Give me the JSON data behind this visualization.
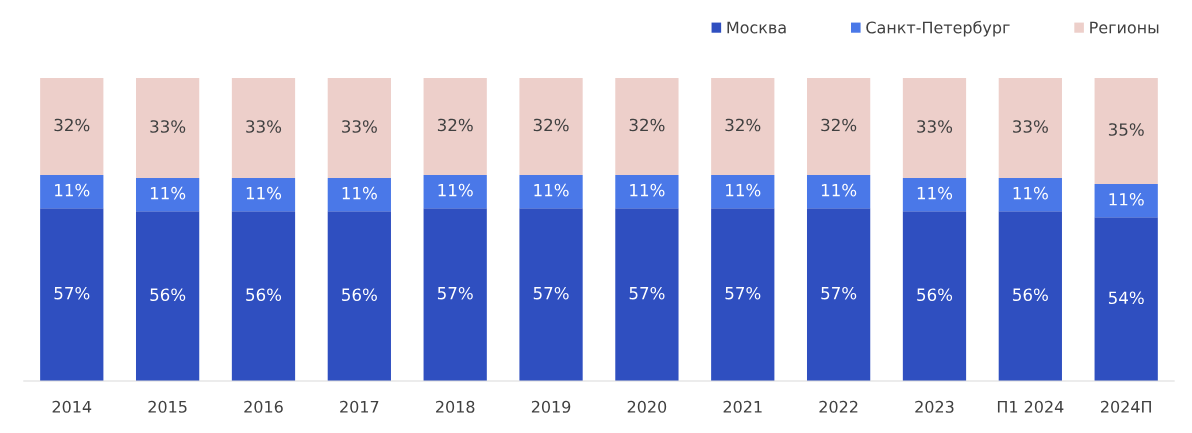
{
  "chart_data": {
    "type": "bar",
    "stacked": true,
    "legend": "top right",
    "tick_labels": "x",
    "grid": false,
    "categories": [
      "2014",
      "2015",
      "2016",
      "2017",
      "2018",
      "2019",
      "2020",
      "2021",
      "2022",
      "2023",
      "П1 2024",
      "2024П"
    ],
    "ylim": [
      0,
      100
    ],
    "series": [
      {
        "name": "Москва",
        "color": "#2f4fc0",
        "values": [
          57,
          56,
          56,
          56,
          57,
          57,
          57,
          57,
          57,
          56,
          56,
          54
        ],
        "value_labels": [
          "57%",
          "56%",
          "56%",
          "56%",
          "57%",
          "57%",
          "57%",
          "57%",
          "57%",
          "56%",
          "56%",
          "54%"
        ]
      },
      {
        "name": "Санкт-Петербург",
        "color": "#4a78e8",
        "values": [
          11,
          11,
          11,
          11,
          11,
          11,
          11,
          11,
          11,
          11,
          11,
          11
        ],
        "value_labels": [
          "11%",
          "11%",
          "11%",
          "11%",
          "11%",
          "11%",
          "11%",
          "11%",
          "11%",
          "11%",
          "11%",
          "11%"
        ]
      },
      {
        "name": "Регионы",
        "color": "#edcfca",
        "values": [
          32,
          33,
          33,
          33,
          32,
          32,
          32,
          32,
          32,
          33,
          33,
          35
        ],
        "value_labels": [
          "32%",
          "33%",
          "33%",
          "33%",
          "32%",
          "32%",
          "32%",
          "32%",
          "32%",
          "33%",
          "33%",
          "35%"
        ]
      }
    ]
  }
}
